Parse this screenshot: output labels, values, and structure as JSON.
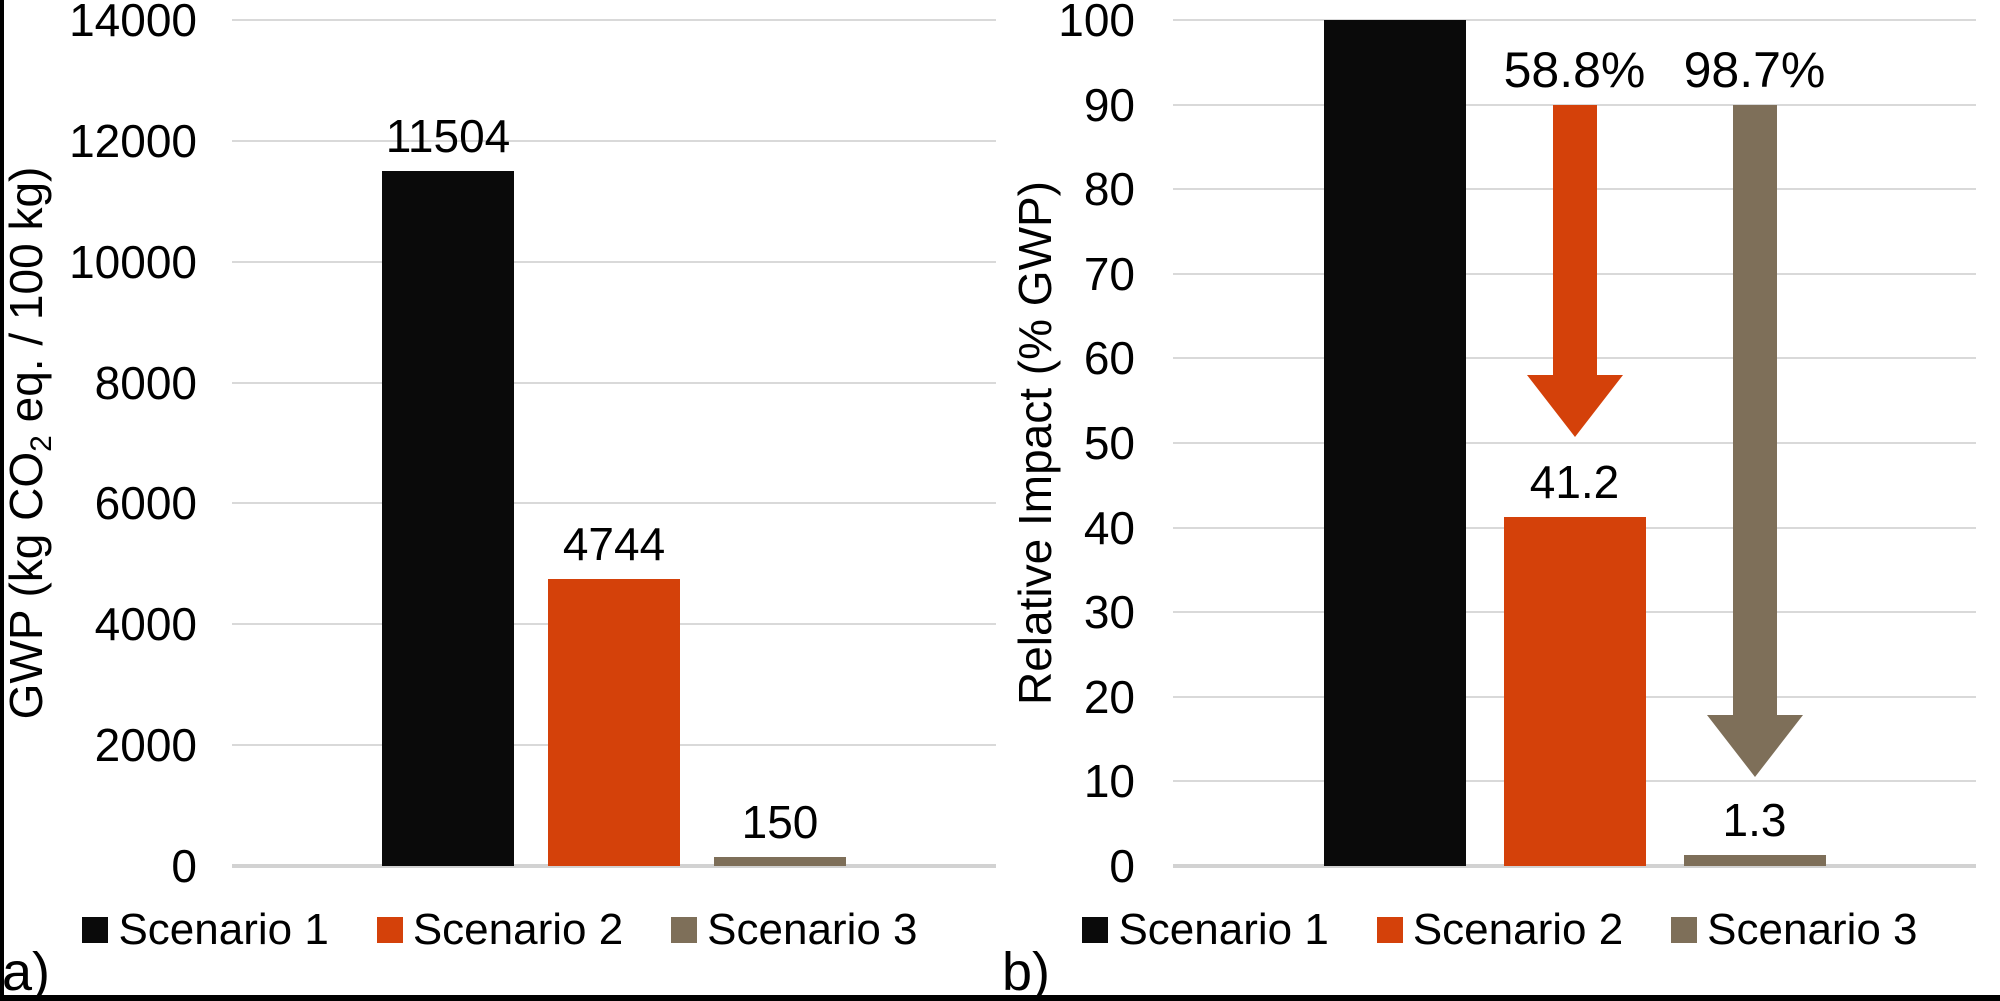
{
  "figure": {
    "panel_a_letter": "a)",
    "panel_b_letter": "b)",
    "colors": {
      "scenario1": "#0a0a0a",
      "scenario2": "#d4410a",
      "scenario3": "#7e6f59",
      "gridline": "#d9d9d9",
      "baseline": "#d2d2d2",
      "text": "#000000",
      "background": "#ffffff"
    }
  },
  "legend": {
    "items": [
      {
        "label": "Scenario 1",
        "color_key": "scenario1"
      },
      {
        "label": "Scenario 2",
        "color_key": "scenario2"
      },
      {
        "label": "Scenario 3",
        "color_key": "scenario3"
      }
    ]
  },
  "chart_data": [
    {
      "id": "a",
      "type": "bar",
      "title": "",
      "ylabel": "GWP (kg CO2 eq. / 100 kg)",
      "ylabel_parts": {
        "pre": "GWP (kg CO",
        "sub": "2",
        "post": " eq. / 100 kg)"
      },
      "xlabel": "",
      "categories": [
        "Scenario 1",
        "Scenario 2",
        "Scenario 3"
      ],
      "values": [
        11504,
        4744,
        150
      ],
      "data_labels": [
        "11504",
        "4744",
        "150"
      ],
      "color_keys": [
        "scenario1",
        "scenario2",
        "scenario3"
      ],
      "ylim": [
        0,
        14000
      ],
      "yticks": [
        0,
        2000,
        4000,
        6000,
        8000,
        10000,
        12000,
        14000
      ],
      "grid": true,
      "legend_position": "bottom",
      "panel_letter": "a)"
    },
    {
      "id": "b",
      "type": "bar",
      "title": "",
      "ylabel": "Relative Impact (% GWP)",
      "xlabel": "",
      "categories": [
        "Scenario 1",
        "Scenario 2",
        "Scenario 3"
      ],
      "values": [
        100,
        41.2,
        1.3
      ],
      "data_labels": [
        "",
        "41.2",
        "1.3"
      ],
      "color_keys": [
        "scenario1",
        "scenario2",
        "scenario3"
      ],
      "ylim": [
        0,
        100
      ],
      "yticks": [
        0,
        10,
        20,
        30,
        40,
        50,
        60,
        70,
        80,
        90,
        100
      ],
      "grid": true,
      "legend_position": "bottom",
      "panel_letter": "b)",
      "annotations": [
        {
          "type": "down-arrow",
          "label": "58.8%",
          "category_index": 1,
          "from_value": 90,
          "to_value": 50.7,
          "color_key": "scenario2"
        },
        {
          "type": "down-arrow",
          "label": "98.7%",
          "category_index": 2,
          "from_value": 90,
          "to_value": 10.5,
          "color_key": "scenario3"
        }
      ]
    }
  ]
}
